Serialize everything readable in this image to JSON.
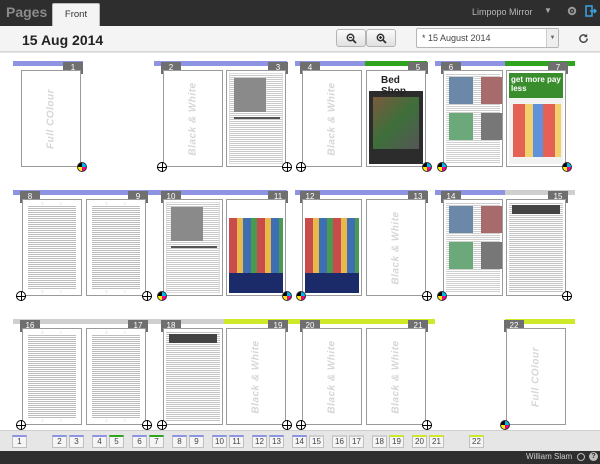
{
  "app": {
    "title": "Pages",
    "active_tab": "Front",
    "publication": "Limpopo Mirror"
  },
  "toolbar": {
    "date": "15 Aug 2014",
    "edition": "* 15 August 2014"
  },
  "watermarks": {
    "bw": "Black & White",
    "color": "Full COlour"
  },
  "colors": {
    "blue": "#8e94e2",
    "green": "#2ea41f",
    "lime": "#cfe82a",
    "gray": "#cfcfcf"
  },
  "pages": [
    {
      "num": "1",
      "content": "blank",
      "print": "color"
    },
    {
      "num": "2",
      "content": "blank",
      "print": "bw"
    },
    {
      "num": "3",
      "content": "news",
      "print": "bw"
    },
    {
      "num": "4",
      "content": "blank",
      "print": "bw"
    },
    {
      "num": "5",
      "content": "bedshop",
      "print": "color",
      "headline": "Bed Shop"
    },
    {
      "num": "6",
      "content": "photo",
      "print": "color"
    },
    {
      "num": "7",
      "content": "promo",
      "print": "color",
      "headline": "get more pay less"
    },
    {
      "num": "8",
      "content": "col",
      "print": "bw"
    },
    {
      "num": "9",
      "content": "col",
      "print": "bw"
    },
    {
      "num": "10",
      "content": "news",
      "print": "color"
    },
    {
      "num": "11",
      "content": "color",
      "print": "color"
    },
    {
      "num": "12",
      "content": "color",
      "print": "color"
    },
    {
      "num": "13",
      "content": "blank",
      "print": "bw"
    },
    {
      "num": "14",
      "content": "photo",
      "print": "color"
    },
    {
      "num": "15",
      "content": "ads",
      "print": "bw"
    },
    {
      "num": "16",
      "content": "col",
      "print": "bw"
    },
    {
      "num": "17",
      "content": "col",
      "print": "bw"
    },
    {
      "num": "18",
      "content": "ads",
      "print": "bw"
    },
    {
      "num": "19",
      "content": "blank",
      "print": "bw"
    },
    {
      "num": "20",
      "content": "blank",
      "print": "bw"
    },
    {
      "num": "21",
      "content": "blank",
      "print": "bw"
    },
    {
      "num": "22",
      "content": "blank",
      "print": "color"
    }
  ],
  "footer": {
    "user": "William Slam"
  }
}
